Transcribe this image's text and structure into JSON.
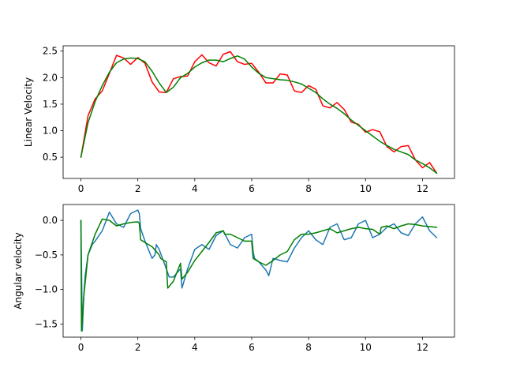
{
  "chart_data": [
    {
      "type": "line",
      "title": "",
      "xlabel": "",
      "ylabel": "Linear Velocity",
      "xlim": [
        -0.625,
        13.125
      ],
      "ylim": [
        0.1,
        2.6
      ],
      "xticks": [
        0,
        2,
        4,
        6,
        8,
        10,
        12
      ],
      "xtick_labels": [
        "0",
        "2",
        "4",
        "6",
        "8",
        "10",
        "12"
      ],
      "yticks": [
        0.5,
        1.0,
        1.5,
        2.0,
        2.5
      ],
      "ytick_labels": [
        "0.5",
        "1.0",
        "1.5",
        "2.0",
        "2.5"
      ],
      "grid": false,
      "series": [
        {
          "color": "#ff0000",
          "x": [
            0,
            0.25,
            0.5,
            0.75,
            1.0,
            1.25,
            1.5,
            1.75,
            2.0,
            2.25,
            2.5,
            2.75,
            3.0,
            3.25,
            3.5,
            3.75,
            4.0,
            4.25,
            4.5,
            4.75,
            5.0,
            5.25,
            5.5,
            5.75,
            6.0,
            6.25,
            6.5,
            6.75,
            7.0,
            7.25,
            7.5,
            7.75,
            8.0,
            8.25,
            8.5,
            8.75,
            9.0,
            9.25,
            9.5,
            9.75,
            10.0,
            10.25,
            10.5,
            10.75,
            11.0,
            11.25,
            11.5,
            11.75,
            12.0,
            12.25,
            12.5
          ],
          "y": [
            0.5,
            1.28,
            1.6,
            1.75,
            2.08,
            2.42,
            2.37,
            2.25,
            2.38,
            2.27,
            1.92,
            1.73,
            1.72,
            1.98,
            2.02,
            2.03,
            2.3,
            2.43,
            2.28,
            2.22,
            2.44,
            2.49,
            2.3,
            2.25,
            2.27,
            2.1,
            1.9,
            1.9,
            2.07,
            2.05,
            1.75,
            1.72,
            1.85,
            1.78,
            1.47,
            1.43,
            1.53,
            1.4,
            1.16,
            1.12,
            0.97,
            1.02,
            0.98,
            0.7,
            0.6,
            0.7,
            0.72,
            0.45,
            0.3,
            0.4,
            0.2
          ]
        },
        {
          "color": "#008000",
          "x": [
            0,
            0.25,
            0.5,
            0.75,
            1.0,
            1.25,
            1.5,
            1.75,
            2.0,
            2.25,
            2.5,
            2.75,
            3.0,
            3.25,
            3.5,
            3.75,
            4.0,
            4.25,
            4.5,
            4.75,
            5.0,
            5.25,
            5.5,
            5.75,
            6.0,
            6.25,
            6.5,
            6.75,
            7.0,
            7.25,
            7.5,
            7.75,
            8.0,
            8.25,
            8.5,
            8.75,
            9.0,
            9.25,
            9.5,
            9.75,
            10.0,
            10.25,
            10.5,
            10.75,
            11.0,
            11.25,
            11.5,
            11.75,
            12.0,
            12.25,
            12.5
          ],
          "y": [
            0.5,
            1.15,
            1.55,
            1.85,
            2.1,
            2.28,
            2.35,
            2.37,
            2.36,
            2.3,
            2.12,
            1.9,
            1.72,
            1.82,
            2.0,
            2.08,
            2.2,
            2.28,
            2.33,
            2.33,
            2.3,
            2.36,
            2.41,
            2.35,
            2.2,
            2.08,
            2.0,
            1.98,
            1.96,
            1.95,
            1.92,
            1.88,
            1.8,
            1.72,
            1.6,
            1.5,
            1.42,
            1.32,
            1.2,
            1.1,
            1.0,
            0.9,
            0.8,
            0.72,
            0.65,
            0.6,
            0.55,
            0.45,
            0.38,
            0.3,
            0.2
          ]
        }
      ]
    },
    {
      "type": "line",
      "title": "",
      "xlabel": "",
      "ylabel": "Angular velocity",
      "xlim": [
        -0.625,
        13.125
      ],
      "ylim": [
        -1.69,
        0.23
      ],
      "xticks": [
        0,
        2,
        4,
        6,
        8,
        10,
        12
      ],
      "xtick_labels": [
        "0",
        "2",
        "4",
        "6",
        "8",
        "10",
        "12"
      ],
      "yticks": [
        -1.5,
        -1.0,
        -0.5,
        0.0
      ],
      "ytick_labels": [
        "−1.5",
        "−1.0",
        "−0.5",
        "0.0"
      ],
      "grid": false,
      "series": [
        {
          "color": "#1f77b4",
          "x": [
            0,
            0.05,
            0.1,
            0.15,
            0.25,
            0.4,
            0.5,
            0.75,
            1.0,
            1.25,
            1.5,
            1.75,
            2.0,
            2.05,
            2.1,
            2.25,
            2.5,
            2.6,
            2.65,
            2.75,
            3.0,
            3.1,
            3.25,
            3.5,
            3.55,
            3.75,
            4.0,
            4.25,
            4.5,
            4.75,
            5.0,
            5.25,
            5.5,
            5.75,
            6.0,
            6.05,
            6.1,
            6.25,
            6.5,
            6.6,
            6.75,
            7.0,
            7.25,
            7.5,
            7.75,
            8.0,
            8.25,
            8.5,
            8.75,
            9.0,
            9.25,
            9.5,
            9.75,
            10.0,
            10.25,
            10.5,
            10.75,
            11.0,
            11.25,
            11.5,
            11.75,
            12.0,
            12.25,
            12.5
          ],
          "y": [
            0.0,
            -1.6,
            -1.1,
            -0.8,
            -0.5,
            -0.35,
            -0.3,
            -0.15,
            0.12,
            -0.05,
            -0.1,
            0.1,
            0.15,
            0.1,
            -0.12,
            -0.3,
            -0.55,
            -0.5,
            -0.35,
            -0.42,
            -0.7,
            -0.82,
            -0.82,
            -0.7,
            -0.98,
            -0.7,
            -0.42,
            -0.35,
            -0.42,
            -0.22,
            -0.15,
            -0.35,
            -0.4,
            -0.25,
            -0.2,
            -0.45,
            -0.55,
            -0.6,
            -0.72,
            -0.8,
            -0.55,
            -0.58,
            -0.6,
            -0.4,
            -0.25,
            -0.15,
            -0.28,
            -0.35,
            -0.1,
            -0.05,
            -0.28,
            -0.25,
            -0.05,
            0.0,
            -0.25,
            -0.2,
            -0.1,
            -0.05,
            -0.18,
            -0.22,
            -0.05,
            0.05,
            -0.15,
            -0.25
          ]
        },
        {
          "color": "#008000",
          "x": [
            0,
            0.02,
            0.1,
            0.25,
            0.5,
            0.75,
            1.0,
            1.25,
            1.5,
            1.75,
            2.0,
            2.05,
            2.1,
            2.25,
            2.5,
            2.75,
            2.8,
            3.0,
            3.05,
            3.25,
            3.5,
            3.55,
            3.75,
            4.0,
            4.25,
            4.5,
            4.75,
            5.0,
            5.05,
            5.25,
            5.5,
            5.75,
            6.0,
            6.05,
            6.25,
            6.5,
            6.75,
            7.0,
            7.25,
            7.5,
            7.75,
            8.0,
            8.25,
            8.5,
            8.75,
            9.0,
            9.25,
            9.5,
            9.75,
            10.0,
            10.25,
            10.5,
            10.55,
            10.75,
            11.0,
            11.25,
            11.5,
            11.75,
            12.0,
            12.25,
            12.5
          ],
          "y": [
            0.0,
            -1.6,
            -1.1,
            -0.5,
            -0.2,
            0.02,
            0.0,
            -0.08,
            -0.05,
            -0.03,
            -0.02,
            -0.04,
            -0.28,
            -0.32,
            -0.38,
            -0.5,
            -0.55,
            -0.6,
            -0.98,
            -0.88,
            -0.62,
            -0.85,
            -0.75,
            -0.58,
            -0.45,
            -0.32,
            -0.18,
            -0.15,
            -0.2,
            -0.2,
            -0.25,
            -0.3,
            -0.3,
            -0.55,
            -0.6,
            -0.65,
            -0.58,
            -0.5,
            -0.45,
            -0.28,
            -0.2,
            -0.2,
            -0.18,
            -0.15,
            -0.12,
            -0.18,
            -0.15,
            -0.12,
            -0.1,
            -0.12,
            -0.13,
            -0.2,
            -0.1,
            -0.08,
            -0.12,
            -0.08,
            -0.05,
            -0.06,
            -0.08,
            -0.09,
            -0.1
          ]
        }
      ]
    }
  ]
}
